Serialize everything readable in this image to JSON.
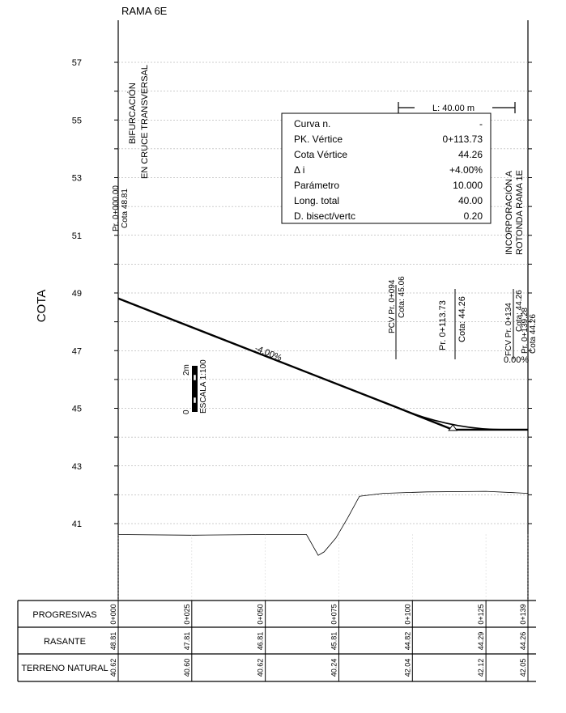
{
  "title": "RAMA 6E",
  "y_axis_title": "COTA",
  "y_tick_labels": [
    "57",
    "55",
    "53",
    "51",
    "49",
    "47",
    "45",
    "43",
    "41"
  ],
  "annotations": {
    "start_feature": [
      "BIFURCACIÓN",
      "EN CRUCE TRANSVERSAL"
    ],
    "start_station": "Pr. 0+000.00",
    "start_elev": "Cota 48.81",
    "end_feature": [
      "INCORPORACIÓN A",
      "ROTONDA RAMA 1E"
    ],
    "vc_length": "L: 40.00 m",
    "grade1": "-4.00%",
    "grade2": "0.00%",
    "pcv_station": "PCV Pr. 0+094",
    "pcv_elev": "Cota: 45.06",
    "vertex_station": "Pr. 0+113.73",
    "vertex_elev": "Cota: 44.26",
    "fcv_station": "FCV Pr. 0+134",
    "fcv_elev": "Cota: 44.26",
    "end_station": "Pr. 0+139.28",
    "end_elev": "Cota 44.26",
    "scale_label": "ESCALA 1:100",
    "scale_top": "2m",
    "scale_bottom": "0"
  },
  "curve_table": {
    "rows": [
      {
        "label": "Curva n.",
        "value": "-"
      },
      {
        "label": "PK. Vértice",
        "value": "0+113.73"
      },
      {
        "label": "Cota Vértice",
        "value": "44.26"
      },
      {
        "label": "Δ i",
        "value": "+4.00%"
      },
      {
        "label": "Parámetro",
        "value": "10.000"
      },
      {
        "label": "Long. total",
        "value": "40.00"
      },
      {
        "label": "D. bisect/vertc",
        "value": "0.20"
      }
    ]
  },
  "guitar": {
    "row_labels": [
      "PROGRESIVAS",
      "RASANTE",
      "TERRENO NATURAL"
    ],
    "progresivas": [
      "0+000",
      "0+025",
      "0+050",
      "0+075",
      "0+100",
      "0+125",
      "0+139"
    ],
    "rasante": [
      "48.81",
      "47.81",
      "46.81",
      "45.81",
      "44.82",
      "44.29",
      "44.26"
    ],
    "terreno": [
      "40.62",
      "40.60",
      "40.62",
      "40.24",
      "42.04",
      "42.12",
      "42.05"
    ]
  },
  "profile_data": {
    "stations_m": [
      0,
      25,
      50,
      75,
      100,
      125,
      139.28
    ],
    "rasante_m": [
      48.81,
      47.81,
      46.81,
      45.81,
      44.82,
      44.29,
      44.26
    ],
    "terreno_m": [
      40.62,
      40.6,
      40.62,
      40.24,
      42.04,
      42.12,
      42.05
    ],
    "terrain_detail": [
      [
        0,
        40.62
      ],
      [
        25,
        40.6
      ],
      [
        50,
        40.62
      ],
      [
        64,
        40.62
      ],
      [
        68,
        39.9
      ],
      [
        70,
        40.02
      ],
      [
        74,
        40.5
      ],
      [
        78,
        41.2
      ],
      [
        82,
        41.95
      ],
      [
        90,
        42.05
      ],
      [
        105,
        42.1
      ],
      [
        125,
        42.12
      ],
      [
        139.28,
        42.05
      ]
    ],
    "pcv": [
      94,
      45.06
    ],
    "vertex": [
      113.73,
      44.26
    ],
    "fcv": [
      134,
      44.26
    ],
    "ylim": [
      40,
      58
    ]
  }
}
